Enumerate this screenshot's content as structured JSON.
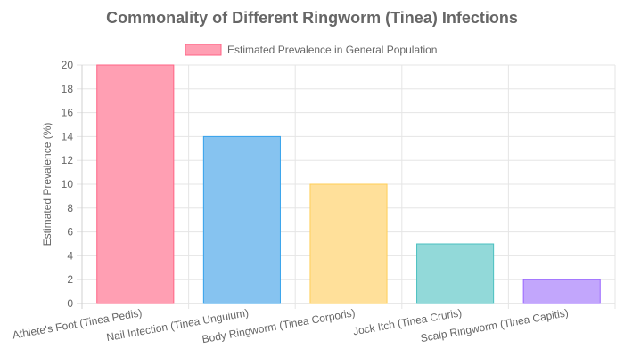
{
  "chart_data": {
    "type": "bar",
    "title": "Commonality of Different Ringworm (Tinea) Infections",
    "ylabel": "Estimated Prevalence (%)",
    "xlabel": "",
    "ylim": [
      0,
      20
    ],
    "ytick_step": 2,
    "grid": true,
    "legend_position": "top",
    "categories": [
      "Athlete's Foot (Tinea Pedis)",
      "Nail Infection (Tinea Unguium)",
      "Body Ringworm (Tinea Corporis)",
      "Jock Itch (Tinea Cruris)",
      "Scalp Ringworm (Tinea Capitis)"
    ],
    "series": [
      {
        "name": "Estimated Prevalence in General Population",
        "values": [
          20,
          14,
          10,
          5,
          2
        ],
        "fill_colors": [
          "#ff9fb3",
          "#86c3f0",
          "#ffe09a",
          "#92d9d9",
          "#c2a6fc"
        ],
        "border_colors": [
          "#ff6384",
          "#36a2eb",
          "#ffce56",
          "#4bc0c0",
          "#9966ff"
        ]
      }
    ]
  }
}
